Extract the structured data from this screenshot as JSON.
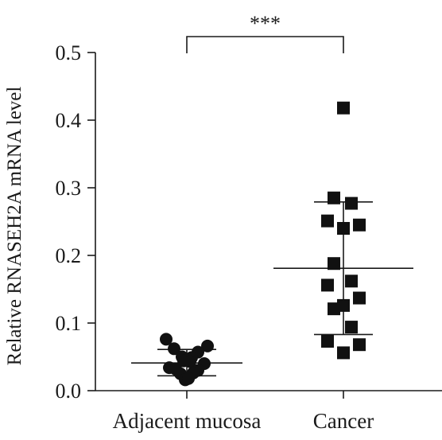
{
  "chart_data": {
    "type": "scatter",
    "ylabel": "Relative RNASEH2A mRNA level",
    "xlabel": "",
    "ylim": [
      0,
      0.5
    ],
    "yticks": [
      "0.0",
      "0.1",
      "0.2",
      "0.3",
      "0.4",
      "0.5"
    ],
    "categories": [
      "Adjacent mucosa",
      "Cancer"
    ],
    "significance": "***",
    "legend": "none",
    "grid": false,
    "series": [
      {
        "category": "Adjacent mucosa",
        "marker": "circle",
        "mean": 0.041,
        "sd_low": 0.022,
        "sd_high": 0.061,
        "points": [
          {
            "offset": -0.13,
            "y": 0.076
          },
          {
            "offset": 0.13,
            "y": 0.066
          },
          {
            "offset": -0.08,
            "y": 0.062
          },
          {
            "offset": 0.07,
            "y": 0.057
          },
          {
            "offset": -0.03,
            "y": 0.05
          },
          {
            "offset": 0.03,
            "y": 0.049
          },
          {
            "offset": -0.02,
            "y": 0.044
          },
          {
            "offset": 0.02,
            "y": 0.043
          },
          {
            "offset": 0.11,
            "y": 0.04
          },
          {
            "offset": -0.11,
            "y": 0.034
          },
          {
            "offset": -0.07,
            "y": 0.032
          },
          {
            "offset": 0.07,
            "y": 0.03
          },
          {
            "offset": -0.04,
            "y": 0.025
          },
          {
            "offset": 0.04,
            "y": 0.026
          },
          {
            "offset": -0.01,
            "y": 0.016
          },
          {
            "offset": 0.01,
            "y": 0.018
          }
        ]
      },
      {
        "category": "Cancer",
        "marker": "square",
        "mean": 0.181,
        "sd_low": 0.083,
        "sd_high": 0.279,
        "points": [
          {
            "offset": 0.0,
            "y": 0.418
          },
          {
            "offset": -0.06,
            "y": 0.285
          },
          {
            "offset": 0.05,
            "y": 0.277
          },
          {
            "offset": -0.1,
            "y": 0.251
          },
          {
            "offset": 0.1,
            "y": 0.245
          },
          {
            "offset": 0.0,
            "y": 0.24
          },
          {
            "offset": -0.06,
            "y": 0.188
          },
          {
            "offset": 0.05,
            "y": 0.162
          },
          {
            "offset": -0.1,
            "y": 0.156
          },
          {
            "offset": 0.1,
            "y": 0.137
          },
          {
            "offset": 0.0,
            "y": 0.126
          },
          {
            "offset": -0.06,
            "y": 0.121
          },
          {
            "offset": 0.05,
            "y": 0.094
          },
          {
            "offset": -0.1,
            "y": 0.073
          },
          {
            "offset": 0.1,
            "y": 0.068
          },
          {
            "offset": 0.0,
            "y": 0.056
          }
        ]
      }
    ]
  }
}
